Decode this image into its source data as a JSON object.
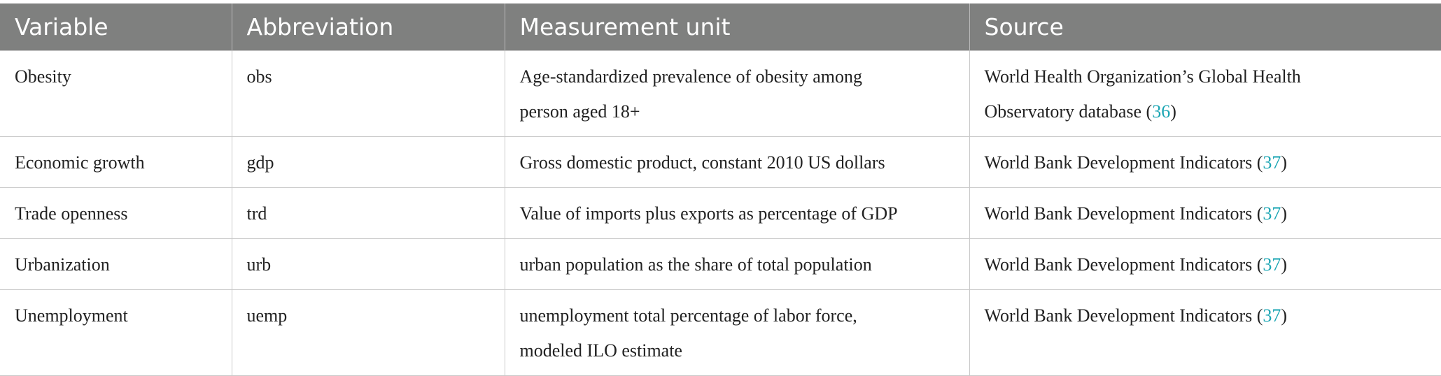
{
  "table": {
    "header": [
      "Variable",
      "Abbreviation",
      "Measurement unit",
      "Source"
    ],
    "rows": [
      {
        "variable": "Obesity",
        "abbreviation": "obs",
        "unit": [
          "Age-standardized prevalence of obesity among",
          "person aged 18+"
        ],
        "source": {
          "lines": [
            "World Health Organization’s Global Health",
            "Observatory database ("
          ],
          "ref": "36",
          "close": ")"
        }
      },
      {
        "variable": "Economic growth",
        "abbreviation": "gdp",
        "unit": [
          "Gross domestic product, constant 2010 US dollars"
        ],
        "source": {
          "lines": [
            "World Bank Development Indicators ("
          ],
          "ref": "37",
          "close": ")"
        }
      },
      {
        "variable": "Trade openness",
        "abbreviation": "trd",
        "unit": [
          "Value of imports plus exports as percentage of GDP"
        ],
        "source": {
          "lines": [
            "World Bank Development Indicators ("
          ],
          "ref": "37",
          "close": ")"
        }
      },
      {
        "variable": "Urbanization",
        "abbreviation": "urb",
        "unit": [
          "urban population as the share of total population"
        ],
        "source": {
          "lines": [
            "World Bank Development Indicators ("
          ],
          "ref": "37",
          "close": ")"
        }
      },
      {
        "variable": "Unemployment",
        "abbreviation": "uemp",
        "unit": [
          "unemployment total percentage of labor force,",
          "modeled ILO estimate"
        ],
        "source": {
          "lines": [
            "World Bank Development Indicators ("
          ],
          "ref": "37",
          "close": ")"
        }
      }
    ]
  }
}
